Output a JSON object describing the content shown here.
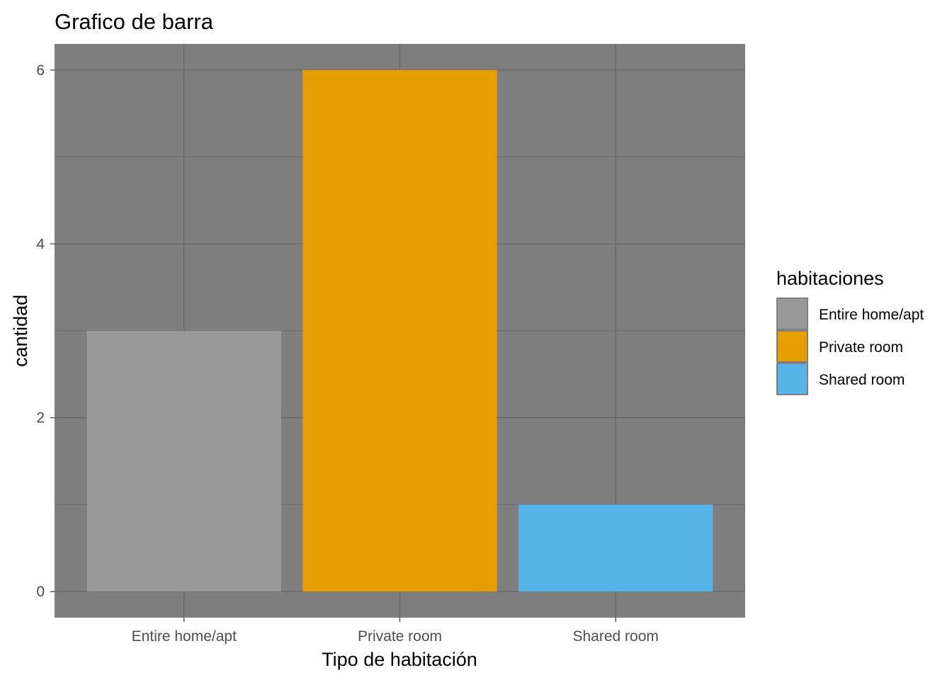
{
  "chart_data": {
    "type": "bar",
    "title": "Grafico de barra",
    "xlabel": "Tipo de habitación",
    "ylabel": "cantidad",
    "categories": [
      "Entire home/apt",
      "Private room",
      "Shared room"
    ],
    "values": [
      3,
      6,
      1
    ],
    "colors": [
      "#999999",
      "#E69F00",
      "#56B4E9"
    ],
    "ylim": [
      -0.3,
      6.3
    ],
    "yticks": [
      0,
      2,
      4,
      6
    ],
    "yminor": [
      1,
      3,
      5
    ],
    "grid": true,
    "panel_background": "#7F7F7F",
    "grid_color": "#666666",
    "legend": {
      "title": "habitaciones",
      "position": "right",
      "items": [
        "Entire home/apt",
        "Private room",
        "Shared room"
      ]
    }
  }
}
